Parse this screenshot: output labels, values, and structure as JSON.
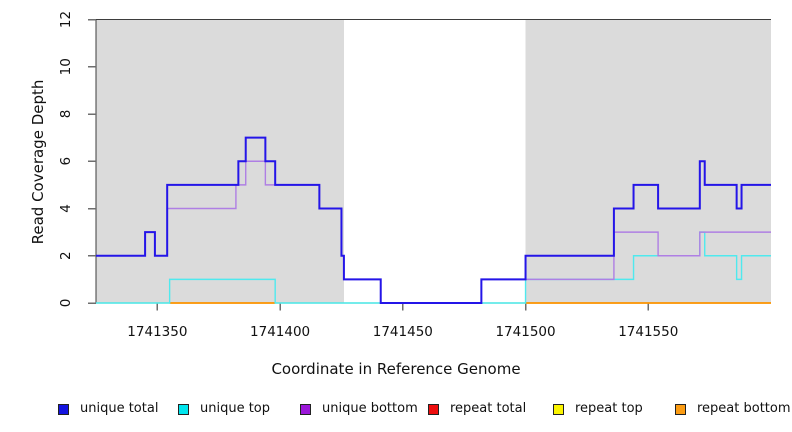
{
  "chart_data": {
    "type": "line",
    "subtype": "step-coverage-plot",
    "title": "",
    "xlabel": "Coordinate in Reference Genome",
    "ylabel": "Read Coverage Depth",
    "xlim": [
      1741325,
      1741600
    ],
    "ylim": [
      0,
      12
    ],
    "x_ticks": [
      1741350,
      1741400,
      1741450,
      1741500,
      1741550
    ],
    "y_ticks": [
      0,
      2,
      4,
      6,
      8,
      10,
      12
    ],
    "grid": false,
    "axis_color": "#3d3d3d",
    "tick_color": "#6e6e6e",
    "shade_color": "#dbdbdb",
    "shaded_regions": [
      {
        "x1": 1741325,
        "x2": 1741426
      },
      {
        "x1": 1741500,
        "x2": 1741600
      }
    ],
    "series": [
      {
        "name": "zero-baseline",
        "color": "#8fcb8f",
        "lw": 1.2,
        "steps": [
          [
            1741325,
            0
          ],
          [
            1741600,
            0
          ]
        ]
      },
      {
        "name": "repeat bottom",
        "color": "#ff9300",
        "lw": 1.7,
        "steps": [
          [
            1741355,
            0
          ],
          [
            1741398,
            0
          ]
        ]
      },
      {
        "name": "repeat bottom",
        "color": "#ff9300",
        "lw": 1.7,
        "steps": [
          [
            1741500,
            0
          ],
          [
            1741600,
            0
          ]
        ]
      },
      {
        "name": "unique top",
        "color": "#4fe9ee",
        "lw": 1.4,
        "steps": [
          [
            1741325,
            0
          ],
          [
            1741355,
            1
          ],
          [
            1741398,
            0
          ],
          [
            1741500,
            1
          ],
          [
            1741544,
            2
          ],
          [
            1741571,
            3
          ],
          [
            1741573,
            2
          ],
          [
            1741586,
            1
          ],
          [
            1741588,
            2
          ],
          [
            1741600,
            2
          ]
        ]
      },
      {
        "name": "unique bottom",
        "color": "#af7fe4",
        "lw": 1.4,
        "steps": [
          [
            1741325,
            2
          ],
          [
            1741345,
            3
          ],
          [
            1741349,
            2
          ],
          [
            1741354,
            4
          ],
          [
            1741382,
            5
          ],
          [
            1741386,
            6
          ],
          [
            1741394,
            5
          ],
          [
            1741416,
            4
          ],
          [
            1741425,
            2
          ],
          [
            1741426,
            1
          ],
          [
            1741441,
            0
          ],
          [
            1741482,
            1
          ],
          [
            1741536,
            3
          ],
          [
            1741554,
            2
          ],
          [
            1741571,
            3
          ],
          [
            1741600,
            3
          ]
        ]
      },
      {
        "name": "unique total",
        "color": "#2415e8",
        "lw": 2,
        "steps": [
          [
            1741325,
            2
          ],
          [
            1741345,
            3
          ],
          [
            1741349,
            2
          ],
          [
            1741354,
            5
          ],
          [
            1741383,
            6
          ],
          [
            1741386,
            7
          ],
          [
            1741394,
            6
          ],
          [
            1741398,
            5
          ],
          [
            1741416,
            4
          ],
          [
            1741425,
            2
          ],
          [
            1741426,
            1
          ],
          [
            1741441,
            0
          ],
          [
            1741482,
            1
          ],
          [
            1741500,
            2
          ],
          [
            1741536,
            4
          ],
          [
            1741544,
            5
          ],
          [
            1741554,
            4
          ],
          [
            1741571,
            6
          ],
          [
            1741573,
            5
          ],
          [
            1741586,
            4
          ],
          [
            1741588,
            5
          ],
          [
            1741600,
            5
          ]
        ]
      }
    ],
    "legend": [
      {
        "label": "unique total",
        "color": "#1414e0"
      },
      {
        "label": "unique top",
        "color": "#00e5ee"
      },
      {
        "label": "unique bottom",
        "color": "#9b17d9"
      },
      {
        "label": "repeat total",
        "color": "#ee0e0e"
      },
      {
        "label": "repeat top",
        "color": "#fbf400"
      },
      {
        "label": "repeat bottom",
        "color": "#fb9c13"
      }
    ],
    "legend_position": "bottom"
  }
}
